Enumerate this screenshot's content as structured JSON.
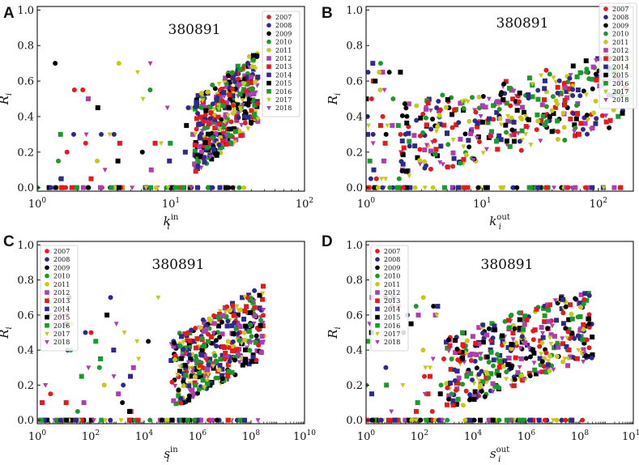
{
  "chart_data": [
    {
      "panel": "A",
      "type": "scatter",
      "xscale": "log",
      "xlim": [
        1,
        100
      ],
      "ylim": [
        -0.02,
        1.02
      ],
      "xticks": [
        1,
        10,
        100
      ],
      "xtick_labels": [
        {
          "base": "10",
          "exp": "0"
        },
        {
          "base": "10",
          "exp": "1"
        },
        {
          "base": "10",
          "exp": "2"
        }
      ],
      "yticks": [
        0.0,
        0.2,
        0.4,
        0.6,
        0.8,
        1.0
      ],
      "ytick_labels": [
        "0.0",
        "0.2",
        "0.4",
        "0.6",
        "0.8",
        "1.0"
      ],
      "xlabel": {
        "main": "k",
        "sub": "i",
        "sup": "in"
      },
      "ylabel": {
        "main": "R",
        "sub": "i"
      },
      "annotation": "380891",
      "legend_position": "top-right",
      "cluster": {
        "x_range": [
          15,
          45
        ],
        "y_range": [
          0.1,
          0.65
        ]
      }
    },
    {
      "panel": "B",
      "type": "scatter",
      "xscale": "log",
      "xlim": [
        1,
        200
      ],
      "ylim": [
        -0.02,
        1.02
      ],
      "xticks": [
        1,
        10,
        100
      ],
      "xtick_labels": [
        {
          "base": "10",
          "exp": "0"
        },
        {
          "base": "10",
          "exp": "1"
        },
        {
          "base": "10",
          "exp": "2"
        }
      ],
      "yticks": [
        0.0,
        0.2,
        0.4,
        0.6,
        0.8,
        1.0
      ],
      "ytick_labels": [
        "0.0",
        "0.2",
        "0.4",
        "0.6",
        "0.8",
        "1.0"
      ],
      "xlabel": {
        "main": "k",
        "sub": "i",
        "sup": "out"
      },
      "ylabel": {
        "main": "R",
        "sub": "i"
      },
      "annotation": "380891",
      "legend_position": "top-right",
      "cluster": {
        "x_range": [
          2,
          180
        ],
        "y_range": [
          0.05,
          0.65
        ]
      }
    },
    {
      "panel": "C",
      "type": "scatter",
      "xscale": "log",
      "xlim": [
        1,
        10000000000
      ],
      "ylim": [
        -0.02,
        1.02
      ],
      "xticks": [
        1,
        100,
        10000,
        1000000,
        100000000,
        10000000000
      ],
      "xtick_labels": [
        {
          "base": "10",
          "exp": "0"
        },
        {
          "base": "10",
          "exp": "2"
        },
        {
          "base": "10",
          "exp": "4"
        },
        {
          "base": "10",
          "exp": "6"
        },
        {
          "base": "10",
          "exp": "8"
        },
        {
          "base": "10",
          "exp": "10"
        }
      ],
      "yticks": [
        0.0,
        0.2,
        0.4,
        0.6,
        0.8,
        1.0
      ],
      "ytick_labels": [
        "0.0",
        "0.2",
        "0.4",
        "0.6",
        "0.8",
        "1.0"
      ],
      "xlabel": {
        "main": "s",
        "sub": "i",
        "sup": "in"
      },
      "ylabel": {
        "main": "R",
        "sub": "i"
      },
      "annotation": "380891",
      "legend_position": "top-left",
      "cluster": {
        "x_range": [
          100000,
          300000000
        ],
        "y_range": [
          0.05,
          0.65
        ]
      }
    },
    {
      "panel": "D",
      "type": "scatter",
      "xscale": "log",
      "xlim": [
        1,
        10000000000
      ],
      "ylim": [
        -0.02,
        1.02
      ],
      "xticks": [
        1,
        100,
        10000,
        1000000,
        100000000,
        10000000000
      ],
      "xtick_labels": [
        {
          "base": "10",
          "exp": "0"
        },
        {
          "base": "10",
          "exp": "2"
        },
        {
          "base": "10",
          "exp": "4"
        },
        {
          "base": "10",
          "exp": "6"
        },
        {
          "base": "10",
          "exp": "8"
        },
        {
          "base": "10",
          "exp": "10"
        }
      ],
      "yticks": [
        0.0,
        0.2,
        0.4,
        0.6,
        0.8,
        1.0
      ],
      "ytick_labels": [
        "0.0",
        "0.2",
        "0.4",
        "0.6",
        "0.8",
        "1.0"
      ],
      "xlabel": {
        "main": "s",
        "sub": "i",
        "sup": "out"
      },
      "ylabel": {
        "main": "R",
        "sub": "i"
      },
      "annotation": "380891",
      "legend_position": "top-left",
      "cluster": {
        "x_range": [
          1000,
          300000000
        ],
        "y_range": [
          0.05,
          0.65
        ]
      }
    }
  ],
  "legend": [
    {
      "label": "2007",
      "color": "#e41a1c",
      "marker": "circle"
    },
    {
      "label": "2008",
      "color": "#2e2a8c",
      "marker": "circle"
    },
    {
      "label": "2009",
      "color": "#000000",
      "marker": "circle"
    },
    {
      "label": "2010",
      "color": "#1a9a2a",
      "marker": "circle"
    },
    {
      "label": "2011",
      "color": "#c8c81a",
      "marker": "circle"
    },
    {
      "label": "2012",
      "color": "#b03cb0",
      "marker": "square"
    },
    {
      "label": "2013",
      "color": "#e41a1c",
      "marker": "square"
    },
    {
      "label": "2014",
      "color": "#2e2a8c",
      "marker": "square"
    },
    {
      "label": "2015",
      "color": "#000000",
      "marker": "square"
    },
    {
      "label": "2016",
      "color": "#1a9a2a",
      "marker": "square"
    },
    {
      "label": "2017",
      "color": "#c8c81a",
      "marker": "triangle-down"
    },
    {
      "label": "2018",
      "color": "#b03cb0",
      "marker": "triangle-down"
    }
  ]
}
